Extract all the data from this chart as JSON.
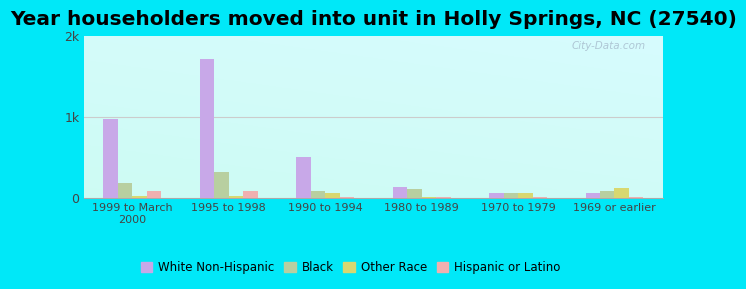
{
  "title": "Year householders moved into unit in Holly Springs, NC (27540)",
  "categories": [
    "1999 to March\n2000",
    "1995 to 1998",
    "1990 to 1994",
    "1980 to 1989",
    "1970 to 1979",
    "1969 or earlier"
  ],
  "series": {
    "White Non-Hispanic": [
      980,
      1720,
      500,
      130,
      55,
      55
    ],
    "Black": [
      190,
      320,
      90,
      115,
      60,
      80
    ],
    "Other Race": [
      18,
      22,
      65,
      12,
      65,
      120
    ],
    "Hispanic or Latino": [
      80,
      80,
      10,
      8,
      5,
      8
    ]
  },
  "colors": {
    "White Non-Hispanic": "#c8a8e8",
    "Black": "#b8cfa0",
    "Other Race": "#d8d870",
    "Hispanic or Latino": "#f0b0b0"
  },
  "ylim": [
    0,
    2000
  ],
  "yticks": [
    0,
    1000,
    2000
  ],
  "ytick_labels": [
    "0",
    "1k",
    "2k"
  ],
  "bar_width": 0.15,
  "background_color_fig": "#00e8f8",
  "watermark": "City-Data.com",
  "title_fontsize": 14.5,
  "legend_fontsize": 8.5
}
